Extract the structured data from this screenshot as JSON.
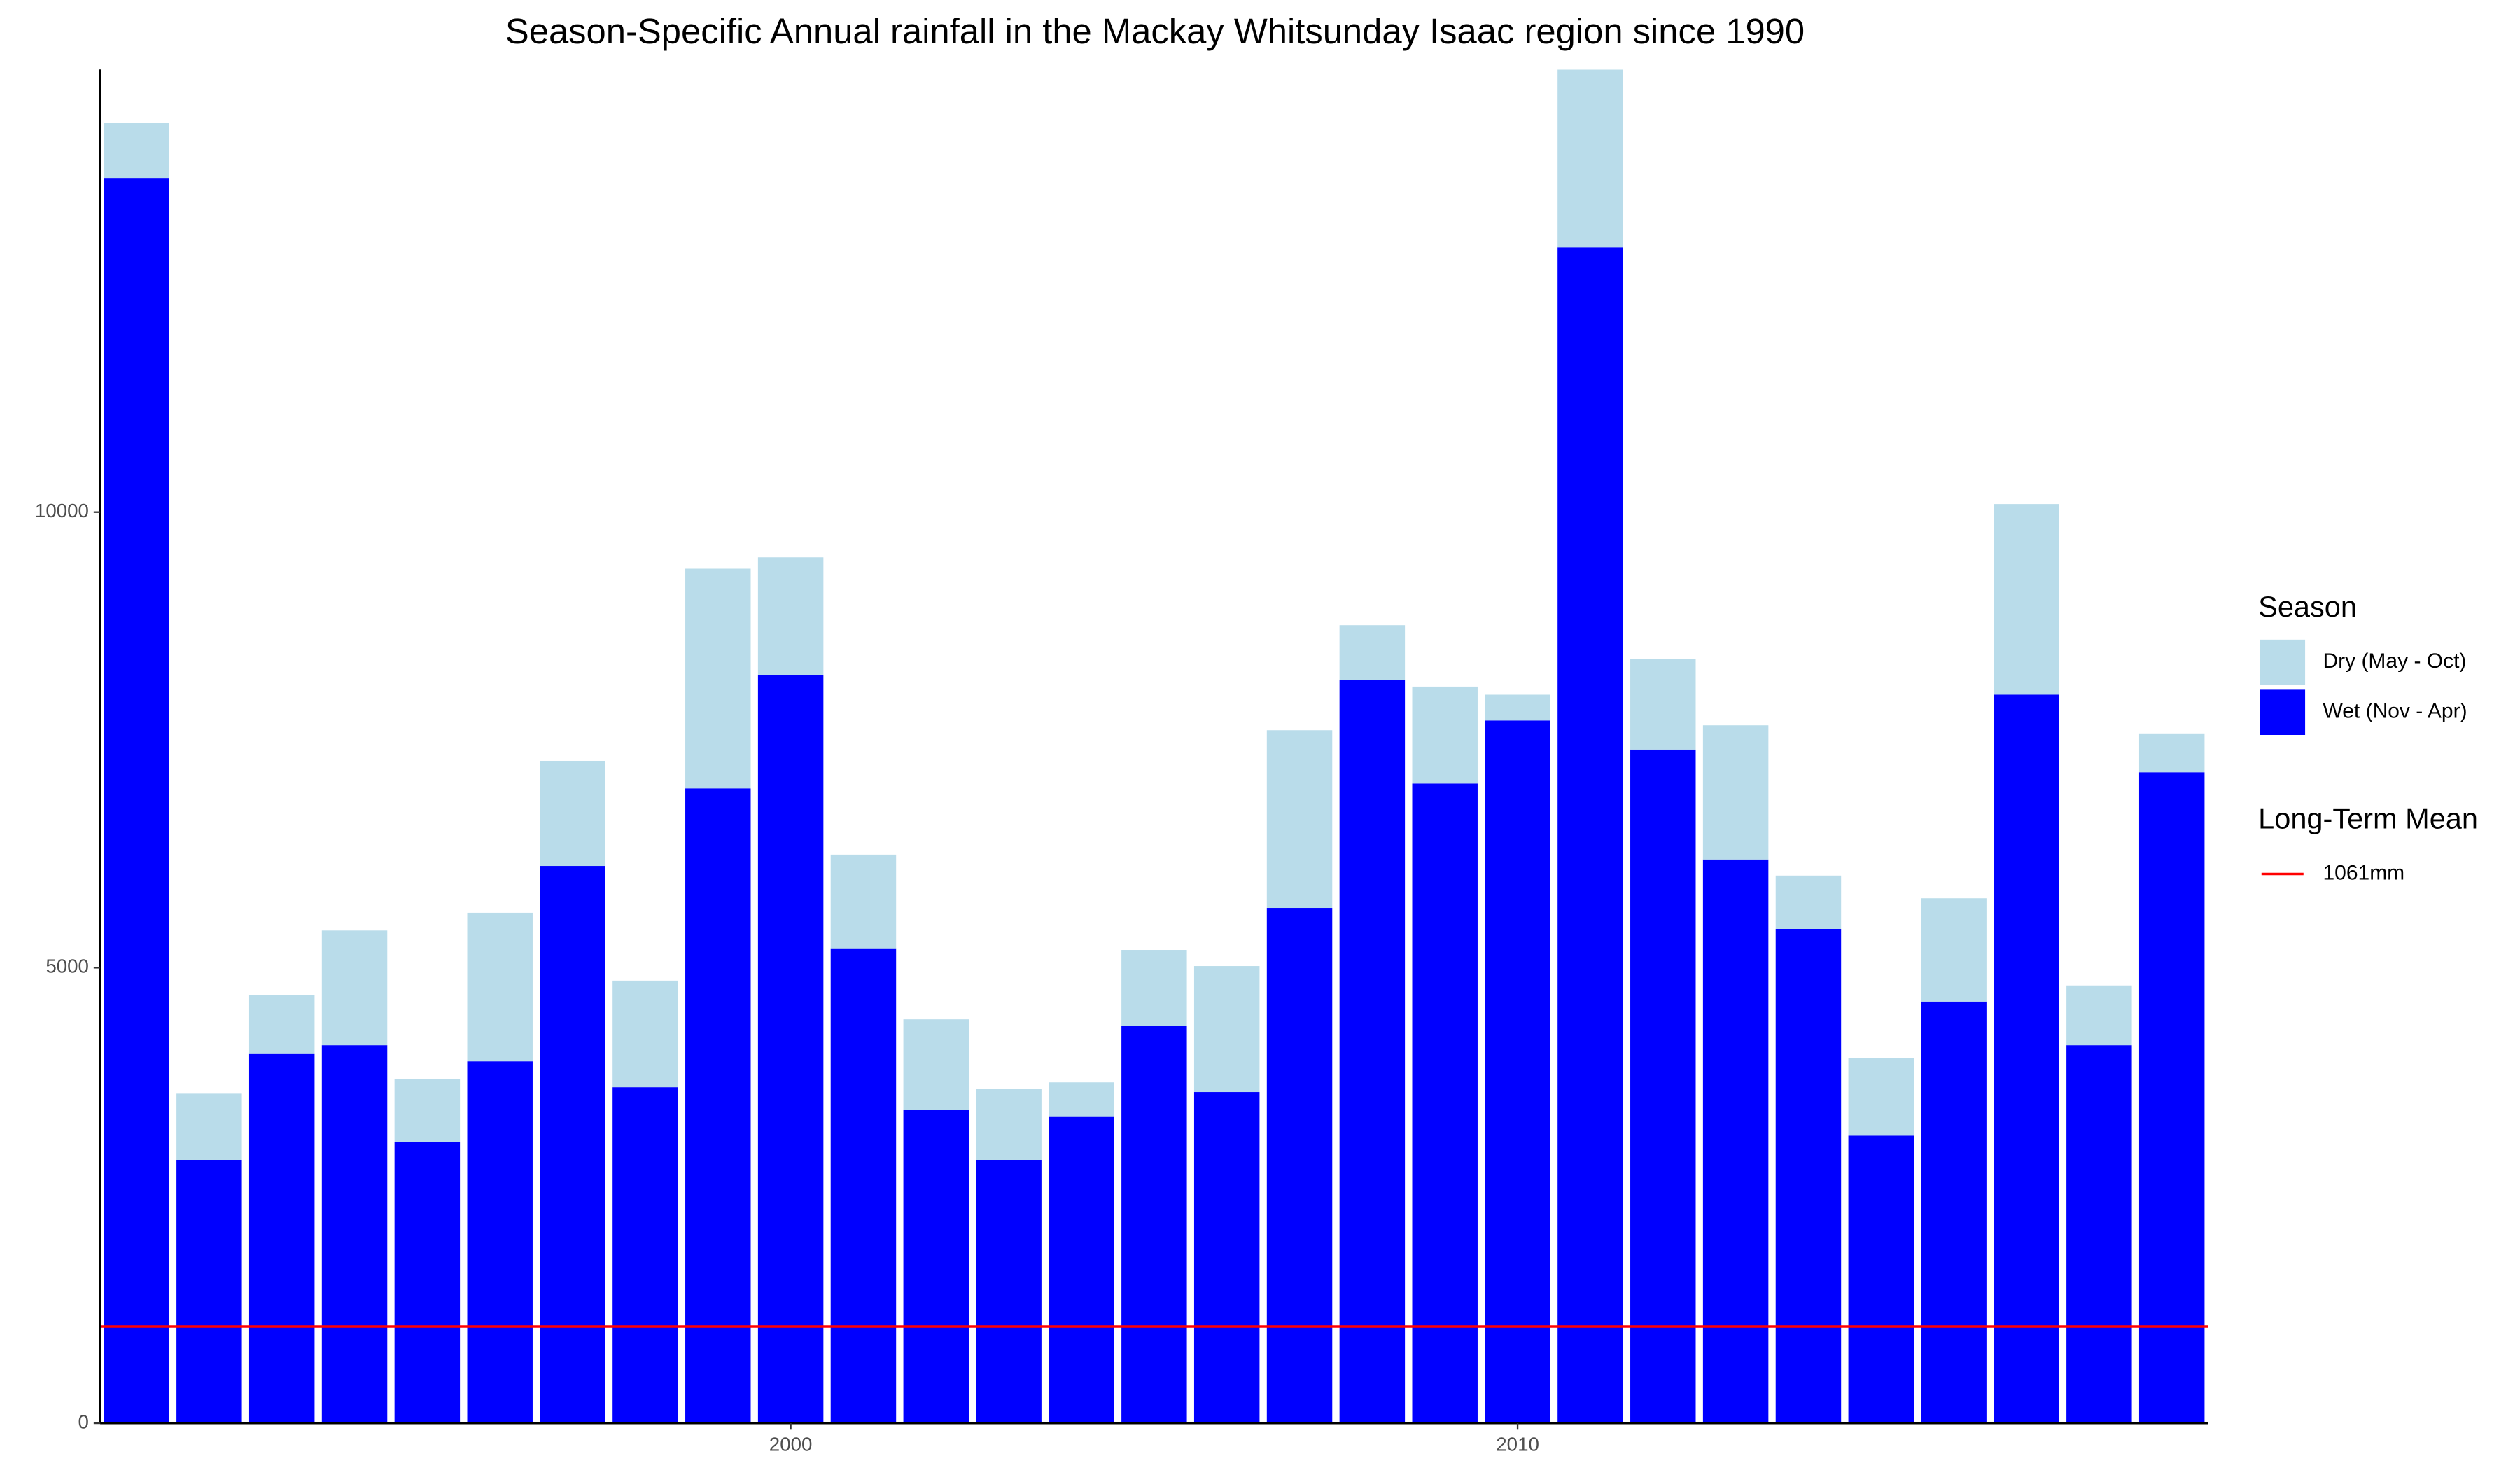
{
  "chart_data": {
    "type": "bar",
    "stacked": true,
    "title": "Season-Specific Annual rainfall in the Mackay Whitsunday Isaac region since 1990",
    "x": [
      1991,
      1992,
      1993,
      1994,
      1995,
      1996,
      1997,
      1998,
      1999,
      2000,
      2001,
      2002,
      2003,
      2004,
      2005,
      2006,
      2007,
      2008,
      2009,
      2010,
      2011,
      2012,
      2013,
      2014,
      2015,
      2016,
      2017,
      2018,
      2019
    ],
    "series": [
      {
        "name": "Dry (May - Oct)",
        "color": "#b9dcea",
        "values": [
          603,
          727,
          639,
          1259,
          692,
          1631,
          1153,
          1170,
          2411,
          1295,
          1028,
          993,
          780,
          372,
          833,
          1383,
          1950,
          603,
          1064,
          283,
          1950,
          993,
          1472,
          585,
          851,
          1134,
          2093,
          656,
          426
        ]
      },
      {
        "name": "Wet (Nov - Apr)",
        "color": "#0000ff",
        "values": [
          13670,
          2890,
          4060,
          4149,
          3085,
          3972,
          6117,
          3688,
          6968,
          8209,
          5213,
          3440,
          2890,
          3369,
          4362,
          3635,
          5656,
          8156,
          7021,
          7713,
          12908,
          7394,
          6188,
          5426,
          3156,
          4628,
          7996,
          4149,
          7145
        ]
      }
    ],
    "legend_title": "Season",
    "reference_line": {
      "title": "Long-Term Mean",
      "value": 1061,
      "label": "1061mm",
      "color": "#ff0000"
    },
    "xlim": [
      1990.5,
      2019.5
    ],
    "xticks": [
      2000,
      2010
    ],
    "ylim": [
      0,
      14860
    ],
    "yticks": [
      0,
      5000,
      10000
    ],
    "grid": false,
    "legend": "right"
  }
}
